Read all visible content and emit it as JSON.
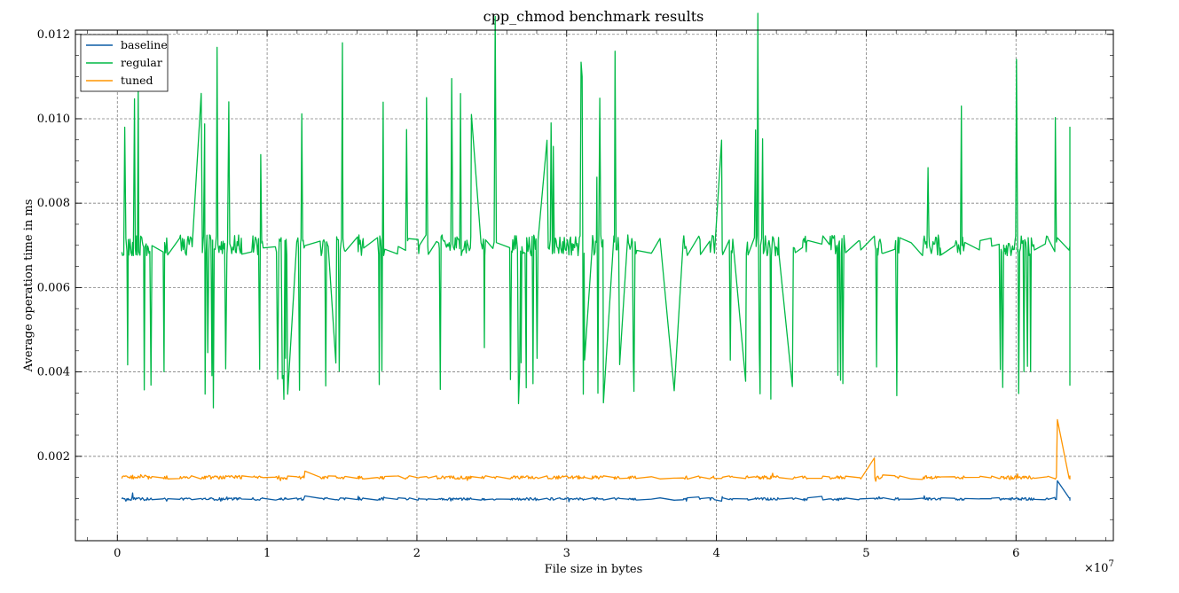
{
  "chart_data": {
    "type": "line",
    "title": "cpp_chmod benchmark results",
    "xlabel": "File size in bytes",
    "ylabel": "Average operation time in ms",
    "x_offset_label": "×10",
    "x_offset_exponent": "7",
    "xlim": [
      -2800000,
      66500000
    ],
    "ylim": [
      0.0,
      0.0121
    ],
    "x_ticks": [
      0,
      10000000,
      20000000,
      30000000,
      40000000,
      50000000,
      60000000
    ],
    "x_tick_labels": [
      "0",
      "1",
      "2",
      "3",
      "4",
      "5",
      "6"
    ],
    "y_ticks": [
      0.002,
      0.004,
      0.006,
      0.008,
      0.01,
      0.012
    ],
    "y_tick_labels": [
      "0.002",
      "0.004",
      "0.006",
      "0.008",
      "0.010",
      "0.012"
    ],
    "grid": true,
    "legend_position": "top-left",
    "x_range": [
      300000,
      63600000
    ],
    "n_points": 620,
    "series": [
      {
        "name": "baseline",
        "color": "#0c5da5",
        "base": 0.00099,
        "spread": 3e-05,
        "spikes": [
          [
            1000000,
            0.00113
          ],
          [
            63000000,
            0.00142
          ],
          [
            12500000,
            0.00106
          ],
          [
            47000000,
            0.00105
          ]
        ]
      },
      {
        "name": "regular",
        "color": "#00b945",
        "base": 0.007,
        "spread": 0.00025,
        "highs": [
          0.0098,
          0.0105,
          0.0116,
          0.0106,
          0.0101,
          0.0125,
          0.0104,
          0.0099,
          0.0103,
          0.0118,
          0.011
        ],
        "lows": [
          0.0037,
          0.0035,
          0.0033,
          0.0038,
          0.0032,
          0.004,
          0.0034,
          0.0031,
          0.0036
        ]
      },
      {
        "name": "tuned",
        "color": "#ff9500",
        "base": 0.0015,
        "spread": 4e-05,
        "spikes": [
          [
            50300000,
            0.00196
          ],
          [
            62900000,
            0.00287
          ],
          [
            12500000,
            0.00165
          ],
          [
            1000000,
            0.00155
          ]
        ]
      }
    ]
  }
}
